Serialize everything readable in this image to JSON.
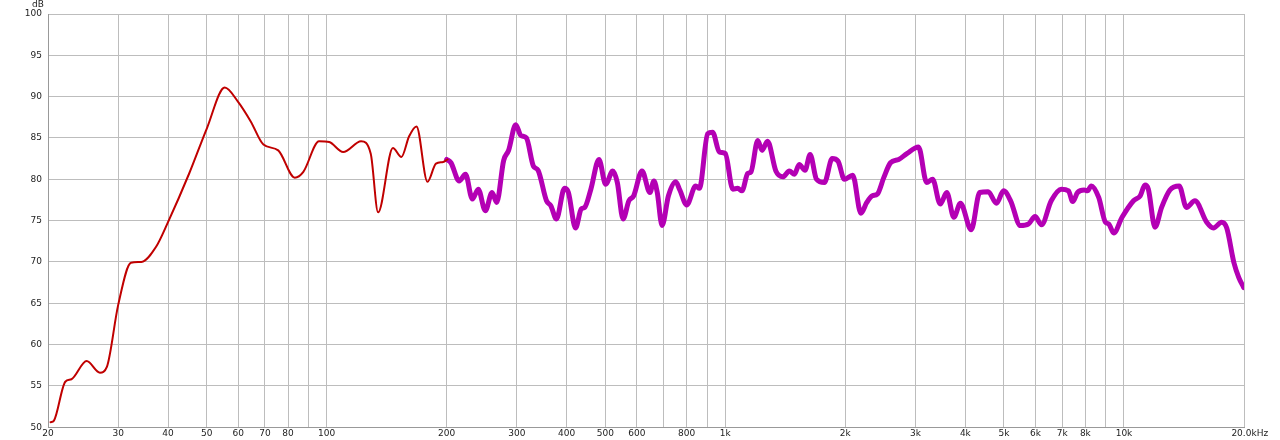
{
  "chart_data": {
    "type": "line",
    "ylabel": "dB",
    "xlabel": "Hz",
    "log": "x",
    "grid": true,
    "legend": false,
    "marker": "none",
    "line_style": "solid",
    "xlim": [
      20,
      20000
    ],
    "ylim": [
      50,
      100
    ],
    "xticks": [
      20,
      30,
      40,
      50,
      60,
      70,
      80,
      {
        "value": 90,
        "label": null
      },
      100,
      200,
      300,
      400,
      500,
      600,
      {
        "value": 700,
        "label": null
      },
      800,
      {
        "value": 900,
        "label": null
      },
      {
        "value": 1000,
        "label": "1k"
      },
      {
        "value": 2000,
        "label": "2k"
      },
      {
        "value": 3000,
        "label": "3k"
      },
      {
        "value": 4000,
        "label": "4k"
      },
      {
        "value": 5000,
        "label": "5k"
      },
      {
        "value": 6000,
        "label": "6k"
      },
      {
        "value": 7000,
        "label": "7k"
      },
      {
        "value": 8000,
        "label": "8k"
      },
      {
        "value": 9000,
        "label": null
      },
      {
        "value": 10000,
        "label": "10k"
      },
      {
        "value": 20000,
        "label": "20.0k"
      }
    ],
    "yticks": [
      50,
      55,
      60,
      65,
      70,
      75,
      80,
      85,
      90,
      95,
      100
    ],
    "series": [
      {
        "color": "#c00000",
        "x": [
          20.3,
          20.7,
          22.1,
          22.9,
          25.0,
          27.0,
          28.1,
          30.0,
          32.3,
          34.3,
          37.3,
          39.9,
          45.2,
          50.1,
          55.5,
          59.9,
          64.5,
          69.4,
          75.6,
          83.2,
          87.4,
          95.7,
          101.5,
          110,
          122,
          129,
          134.6,
          146.6,
          154,
          161,
          168,
          179,
          188,
          196,
          201
        ],
        "values": [
          50.6,
          50.8,
          55.5,
          55.8,
          58.0,
          56.6,
          57.3,
          64.8,
          69.9,
          70.0,
          71.8,
          74.7,
          80.7,
          86.2,
          91.1,
          89.4,
          87.0,
          84.2,
          83.5,
          80.2,
          80.9,
          84.6,
          84.5,
          83.3,
          84.6,
          83.1,
          76.0,
          83.8,
          82.7,
          85.2,
          86.4,
          79.7,
          81.9,
          82.1,
          82.4
        ]
      },
      {
        "color": "#b400b4",
        "x": [
          200,
          205,
          215,
          223,
          232,
          240,
          250,
          260,
          267,
          278,
          286,
          298,
          307,
          317,
          330,
          339,
          356,
          365,
          377,
          395,
          404,
          421,
          435,
          444,
          460,
          482,
          501,
          522,
          536,
          554,
          573,
          589,
          618,
          647,
          662,
          675,
          694,
          720,
          751,
          769,
          800,
          843,
          861,
          903,
          929,
          966,
          1000,
          1044,
          1074,
          1101,
          1138,
          1160,
          1206,
          1236,
          1276,
          1339,
          1394,
          1447,
          1491,
          1532,
          1585,
          1632,
          1693,
          1772,
          1854,
          1917,
          1989,
          2087,
          2188,
          2264,
          2338,
          2406,
          2497,
          2596,
          2722,
          2853,
          3052,
          3200,
          3311,
          3460,
          3593,
          3743,
          3888,
          4138,
          4347,
          4563,
          4788,
          4988,
          5195,
          5495,
          5765,
          5983,
          6210,
          6569,
          6963,
          7257,
          7437,
          7649,
          7945,
          8098,
          8278,
          8641,
          8984,
          9157,
          9424,
          9889,
          10565,
          10982,
          11290,
          11511,
          11963,
          12427,
          13038,
          13755,
          14340,
          15065,
          16125,
          16759,
          17580,
          18103,
          18870,
          19410,
          19970
        ],
        "values": [
          82.4,
          82.0,
          79.8,
          80.6,
          77.6,
          78.8,
          76.2,
          78.4,
          77.2,
          82.3,
          83.5,
          86.6,
          85.3,
          85.0,
          81.6,
          81.1,
          77.4,
          76.8,
          75.2,
          78.9,
          78.4,
          74.1,
          76.4,
          76.6,
          78.8,
          82.4,
          79.4,
          81.0,
          79.6,
          75.2,
          77.4,
          78.0,
          81.0,
          78.4,
          79.8,
          78.4,
          74.4,
          78.0,
          79.7,
          78.7,
          76.9,
          79.2,
          78.9,
          85.5,
          85.7,
          83.3,
          83.1,
          78.8,
          78.9,
          78.6,
          80.7,
          80.9,
          84.7,
          83.5,
          84.6,
          81.0,
          80.3,
          81.0,
          80.6,
          81.8,
          81.1,
          83.0,
          80.0,
          79.6,
          82.5,
          82.2,
          80.0,
          80.5,
          75.9,
          77.2,
          78.0,
          78.2,
          80.2,
          82.0,
          82.4,
          83.1,
          83.9,
          79.6,
          80.0,
          77.0,
          78.4,
          75.4,
          77.1,
          73.9,
          78.4,
          78.5,
          77.1,
          78.6,
          77.4,
          74.4,
          74.6,
          75.5,
          74.5,
          77.4,
          78.8,
          78.6,
          77.3,
          78.4,
          78.7,
          78.6,
          79.2,
          77.8,
          74.8,
          74.6,
          73.5,
          75.4,
          77.4,
          78.0,
          79.3,
          78.8,
          74.2,
          76.6,
          78.7,
          79.2,
          76.6,
          77.4,
          74.8,
          74.1,
          74.8,
          74.1,
          69.9,
          68.1,
          66.9
        ]
      }
    ]
  }
}
